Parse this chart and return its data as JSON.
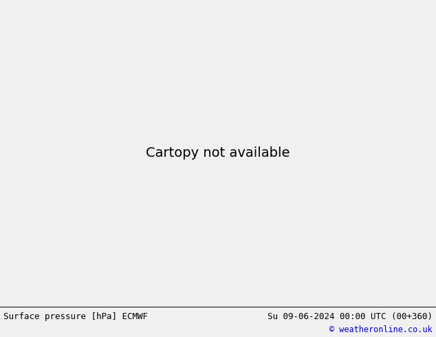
{
  "title_left": "Surface pressure [hPa] ECMWF",
  "title_right": "Su 09-06-2024 00:00 UTC (00+360)",
  "copyright": "© weatheronline.co.uk",
  "ocean_color": "#d8dde8",
  "land_color": "#b8d4a0",
  "lake_color": "#d8dde8",
  "coast_color": "#888888",
  "terrain_color": "#b0b0b0",
  "bottom_bar_color": "#f0f0f0",
  "bottom_line_color": "#000000",
  "text_left_color": "#000000",
  "text_right_color": "#000000",
  "copyright_color": "#0000cc",
  "font_family": "monospace",
  "font_size_bottom": 9,
  "font_size_copyright": 8.5,
  "blue_isobar_color": "#0000cc",
  "red_isobar_color": "#cc0000",
  "black_isobar_color": "#000000",
  "isobar_linewidth": 0.9
}
